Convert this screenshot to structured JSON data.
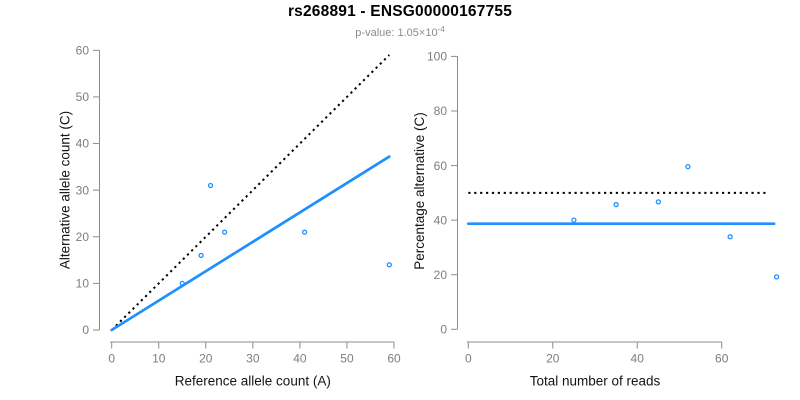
{
  "header": {
    "title": "rs268891 - ENSG00000167755",
    "p_value": {
      "label": "p-value:",
      "base": "1.05×10",
      "exponent": "-4"
    }
  },
  "colors": {
    "accent_blue": "#1E90FF",
    "dotted_line": "#000000",
    "axis_line": "#8C8C8C",
    "tick_label": "#7E7E7E",
    "axis_title": "#141414",
    "title_text": "#000000",
    "subtitle_text": "#8C8C8C",
    "background": "#FFFFFF"
  },
  "chart_data": [
    {
      "id": "allele-counts",
      "type": "scatter",
      "title": "",
      "xlabel": "Reference allele count (A)",
      "ylabel": "Alternative allele count (C)",
      "xlim": [
        0,
        60
      ],
      "ylim": [
        0,
        60
      ],
      "xticks": [
        0,
        10,
        20,
        30,
        40,
        50,
        60
      ],
      "yticks": [
        0,
        10,
        20,
        30,
        40,
        50,
        60
      ],
      "grid": false,
      "legend": false,
      "points": [
        {
          "x": 15,
          "y": 10
        },
        {
          "x": 19,
          "y": 16
        },
        {
          "x": 21,
          "y": 31
        },
        {
          "x": 24,
          "y": 21
        },
        {
          "x": 41,
          "y": 21
        },
        {
          "x": 59,
          "y": 14
        }
      ],
      "lines": [
        {
          "name": "identity-line",
          "style": "dotted",
          "color": "#000000",
          "x1": 0,
          "y1": 0,
          "x2": 59,
          "y2": 59
        },
        {
          "name": "fit-line",
          "style": "solid",
          "color": "#1E90FF",
          "x1": 0,
          "y1": 0,
          "x2": 59,
          "y2": 37.2
        }
      ]
    },
    {
      "id": "percentage-alternative",
      "type": "scatter",
      "title": "",
      "xlabel": "Total number of reads",
      "ylabel": "Percentage alternative (C)",
      "xlim": [
        0,
        73
      ],
      "ylim": [
        0,
        100
      ],
      "xticks": [
        0,
        20,
        40,
        60
      ],
      "yticks": [
        0,
        20,
        40,
        60,
        80,
        100
      ],
      "grid": false,
      "legend": false,
      "points": [
        {
          "x": 25,
          "y": 40
        },
        {
          "x": 35,
          "y": 45.7
        },
        {
          "x": 45,
          "y": 46.7
        },
        {
          "x": 52,
          "y": 59.6
        },
        {
          "x": 62,
          "y": 33.9
        },
        {
          "x": 73,
          "y": 19.2
        }
      ],
      "lines": [
        {
          "name": "fifty-percent-line",
          "style": "dotted",
          "color": "#000000",
          "x1": 0,
          "y1": 50,
          "x2": 71,
          "y2": 50
        },
        {
          "name": "mean-percentage-line",
          "style": "solid",
          "color": "#1E90FF",
          "x1": 0,
          "y1": 38.7,
          "x2": 72.4,
          "y2": 38.7
        }
      ]
    }
  ]
}
